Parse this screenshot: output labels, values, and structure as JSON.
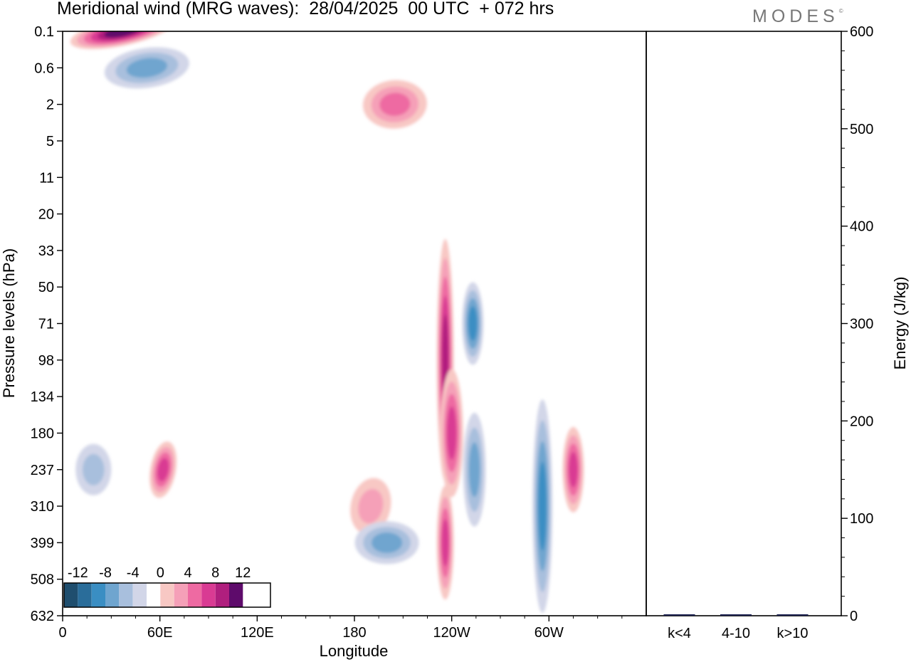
{
  "title": "Meridional wind (MRG waves):  28/04/2025  00 UTC  + 072 hrs",
  "brand": "MODES",
  "brand_mark": "©",
  "colors": {
    "negative": [
      "#1f4e6e",
      "#2a6d9a",
      "#3a8ec3",
      "#6fa5cf",
      "#a8bfdd",
      "#d2d6e8"
    ],
    "zero": "#ffffff",
    "positive": [
      "#f8c8c4",
      "#f5a0b8",
      "#ee6aa2",
      "#d93b93",
      "#b01f7e",
      "#5e0b6b"
    ],
    "frame": "#000000",
    "bar": "#1a1f4d"
  },
  "chart_data": [
    {
      "type": "heatmap",
      "title": "Meridional wind (MRG waves):  28/04/2025  00 UTC  + 072 hrs",
      "xlabel": "Longitude",
      "ylabel": "Pressure levels (hPa)",
      "x_ticks": [
        "0",
        "60E",
        "120E",
        "180",
        "120W",
        "60W"
      ],
      "y_ticks": [
        "0.1",
        "0.6",
        "2",
        "5",
        "11",
        "20",
        "33",
        "50",
        "71",
        "98",
        "134",
        "180",
        "237",
        "310",
        "399",
        "508",
        "632"
      ],
      "colorbar": {
        "levels": [
          -14,
          -12,
          -10,
          -8,
          -6,
          -4,
          -2,
          2,
          4,
          6,
          8,
          10,
          12,
          14
        ],
        "tick_labels": [
          "-12",
          "-8",
          "-4",
          "0",
          "4",
          "8",
          "12"
        ]
      },
      "features": [
        {
          "lon": 37,
          "level": "0.1",
          "value": 13
        },
        {
          "lon": 52,
          "level": "0.6",
          "value": -6
        },
        {
          "lon": 205,
          "level": "2",
          "value": 7
        },
        {
          "lon": 62,
          "level": "237",
          "value": 9
        },
        {
          "lon": 19,
          "level": "237",
          "value": -4
        },
        {
          "lon": 190,
          "level": "310",
          "value": 5
        },
        {
          "lon": 200,
          "level": "399",
          "value": -6
        },
        {
          "lon": 236,
          "level": "98",
          "value": 11
        },
        {
          "lon": 240,
          "level": "180",
          "value": 9
        },
        {
          "lon": 253,
          "level": "71",
          "value": -8
        },
        {
          "lon": 254,
          "level": "237",
          "value": -7
        },
        {
          "lon": 296,
          "level": "310",
          "value": -8
        },
        {
          "lon": 315,
          "level": "237",
          "value": 9
        },
        {
          "lon": 236,
          "level": "399",
          "value": 8
        }
      ]
    },
    {
      "type": "bar",
      "ylabel": "Energy (J/kg)",
      "ylim": [
        0,
        600
      ],
      "y_ticks": [
        "0",
        "100",
        "200",
        "300",
        "400",
        "500",
        "600"
      ],
      "categories": [
        "k<4",
        "4-10",
        "k>10"
      ],
      "values": [
        0,
        1,
        0
      ]
    }
  ]
}
